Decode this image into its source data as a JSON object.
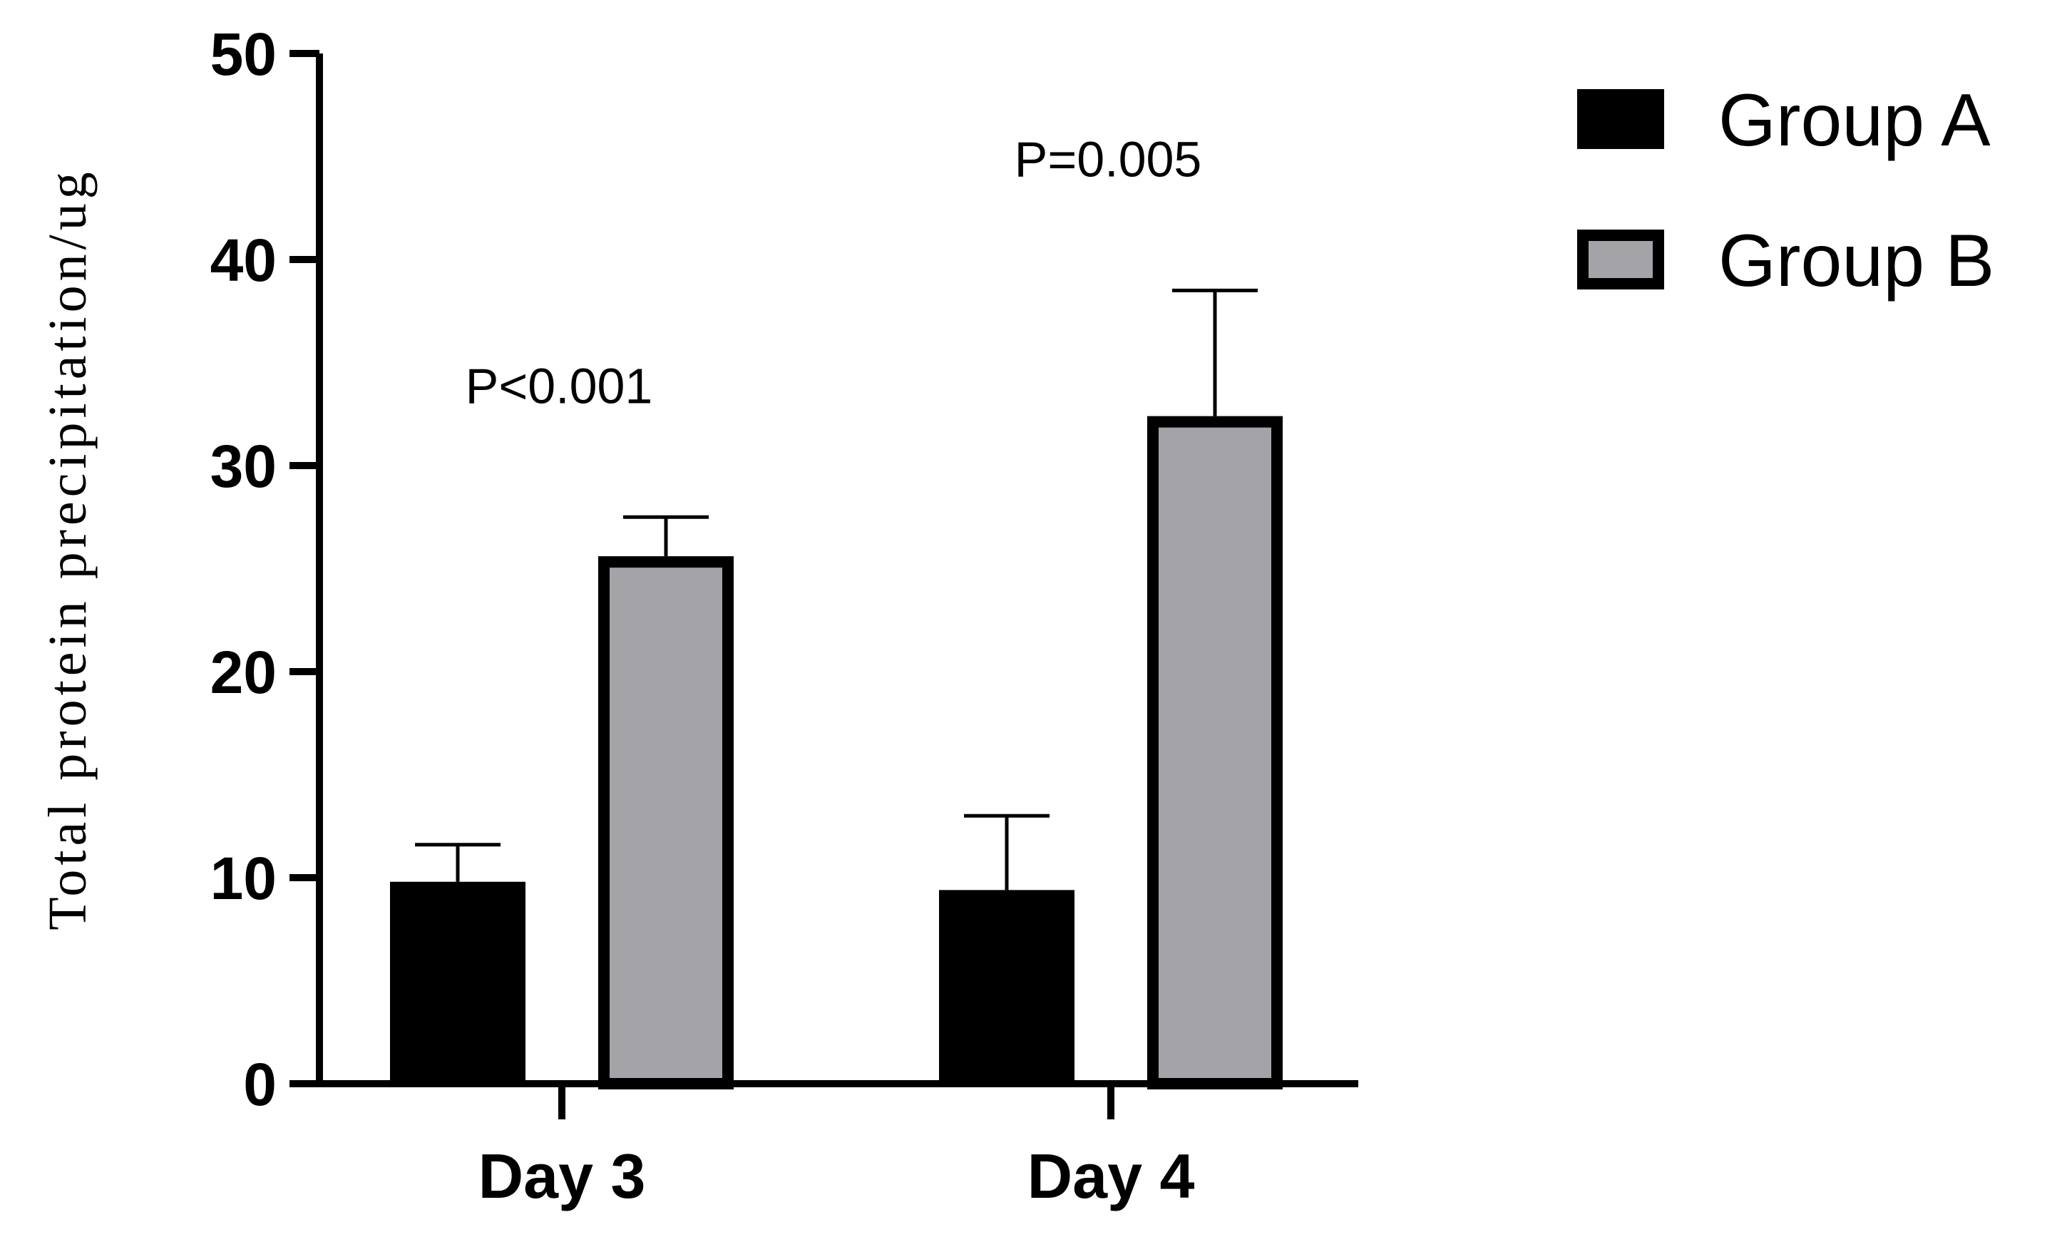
{
  "chart_data": {
    "type": "bar",
    "ylabel": "Total protein precipitation/ug",
    "xlabel": "",
    "ylim": [
      0,
      50
    ],
    "yticks": [
      0,
      10,
      20,
      30,
      40,
      50
    ],
    "categories": [
      "Day 3",
      "Day 4"
    ],
    "series": [
      {
        "name": "Group A",
        "values": [
          9.8,
          9.4
        ],
        "errors": [
          1.8,
          3.6
        ],
        "color": "#000000"
      },
      {
        "name": "Group B",
        "values": [
          25.6,
          32.4
        ],
        "errors": [
          1.9,
          6.1
        ],
        "color": "#a4a3a8"
      }
    ],
    "annotations": [
      {
        "category": "Day 3",
        "text": "P<0.001"
      },
      {
        "category": "Day 4",
        "text": "P=0.005"
      }
    ],
    "legend_position": "top-right",
    "grid": false
  }
}
